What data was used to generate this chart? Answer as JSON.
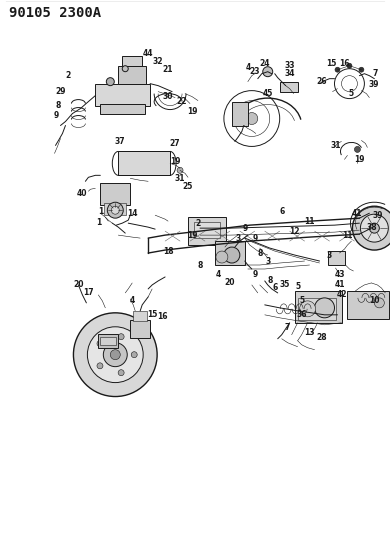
{
  "title_code": "90105 2300A",
  "background_color": "#ffffff",
  "line_color": "#1a1a1a",
  "title_fontsize": 10,
  "title_fontweight": "bold",
  "fig_width": 3.91,
  "fig_height": 5.33,
  "dpi": 100,
  "border_color": "#cccccc",
  "gray_line": "#555555",
  "dark_gray": "#333333",
  "label_fontsize": 5.5,
  "label_fontweight": "bold"
}
